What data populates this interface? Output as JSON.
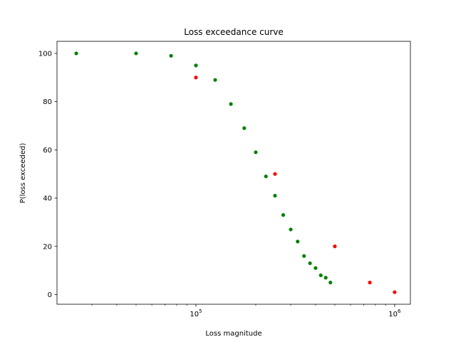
{
  "chart_data": {
    "type": "scatter",
    "title": "Loss exceedance curve",
    "xlabel": "Loss magnitude",
    "ylabel": "P(loss exceeded)",
    "xscale": "log",
    "xlim": [
      20000,
      1200000
    ],
    "ylim": [
      -4,
      105
    ],
    "yticks": [
      0,
      20,
      40,
      60,
      80,
      100
    ],
    "xticks_major": [
      {
        "value": 100000,
        "label": "10",
        "exp": "5"
      },
      {
        "value": 1000000,
        "label": "10",
        "exp": "6"
      }
    ],
    "xticks_minor": [
      30000,
      40000,
      50000,
      60000,
      70000,
      80000,
      90000,
      200000,
      300000,
      400000,
      500000,
      600000,
      700000,
      800000,
      900000
    ],
    "grid": false,
    "legend": "none",
    "series": [
      {
        "color": "#008000",
        "points": [
          [
            25000,
            100
          ],
          [
            50000,
            100
          ],
          [
            75000,
            99
          ],
          [
            100000,
            95
          ],
          [
            125000,
            89
          ],
          [
            150000,
            79
          ],
          [
            175000,
            69
          ],
          [
            200000,
            59
          ],
          [
            225000,
            49
          ],
          [
            250000,
            41
          ],
          [
            275000,
            33
          ],
          [
            300000,
            27
          ],
          [
            325000,
            22
          ],
          [
            350000,
            16
          ],
          [
            375000,
            13
          ],
          [
            400000,
            11
          ],
          [
            425000,
            8
          ],
          [
            450000,
            7
          ],
          [
            475000,
            5
          ]
        ]
      },
      {
        "color": "#ff0000",
        "points": [
          [
            100000,
            90
          ],
          [
            250000,
            50
          ],
          [
            500000,
            20
          ],
          [
            750000,
            5
          ],
          [
            1000000,
            1
          ]
        ]
      }
    ]
  }
}
